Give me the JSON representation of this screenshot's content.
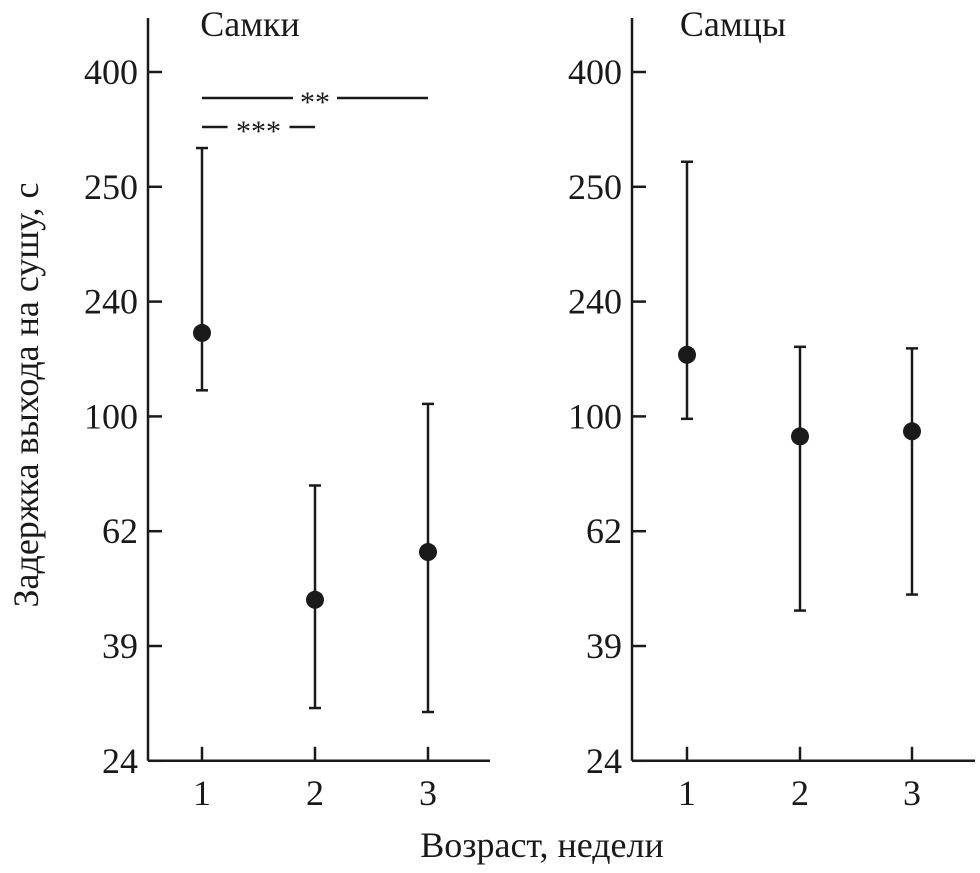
{
  "chart_data": {
    "type": "scatter",
    "ylabel": "Задержка выхода на сушу, с",
    "xlabel": "Возраст, недели",
    "y_scale": "log",
    "y_tick_values": [
      24,
      39,
      62,
      100,
      240,
      250,
      400
    ],
    "y_tick_labels": [
      "24",
      "39",
      "62",
      "100",
      "240",
      "250",
      "400"
    ],
    "x_categories": [
      "1",
      "2",
      "3"
    ],
    "panels": [
      {
        "title": "Самки",
        "points": [
          {
            "x": "1",
            "y": 189,
            "y_low": 122,
            "y_high": 293
          },
          {
            "x": "2",
            "y": 47,
            "y_low": 30,
            "y_high": 75
          },
          {
            "x": "3",
            "y": 57,
            "y_low": 29.5,
            "y_high": 110
          }
        ],
        "significance": [
          {
            "from": "1",
            "to": "2",
            "label": "***"
          },
          {
            "from": "1",
            "to": "3",
            "label": "**"
          }
        ]
      },
      {
        "title": "Самцы",
        "points": [
          {
            "x": "1",
            "y": 160,
            "y_low": 99,
            "y_high": 277
          },
          {
            "x": "2",
            "y": 92,
            "y_low": 45,
            "y_high": 170
          },
          {
            "x": "3",
            "y": 94,
            "y_low": 48,
            "y_high": 168
          }
        ],
        "significance": []
      }
    ]
  }
}
